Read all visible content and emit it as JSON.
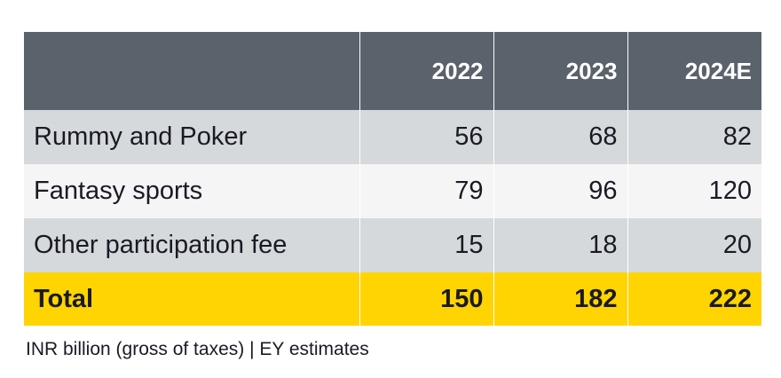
{
  "chart_data": {
    "type": "table",
    "columns": [
      "",
      "2022",
      "2023",
      "2024E"
    ],
    "rows": [
      {
        "label": "Rummy and Poker",
        "values": [
          "56",
          "68",
          "82"
        ]
      },
      {
        "label": "Fantasy sports",
        "values": [
          "79",
          "96",
          "120"
        ]
      },
      {
        "label": "Other participation fee",
        "values": [
          "15",
          "18",
          "20"
        ]
      }
    ],
    "total": {
      "label": "Total",
      "values": [
        "150",
        "182",
        "222"
      ]
    }
  },
  "footnote": "INR billion (gross of taxes) | EY estimates",
  "colors": {
    "header_bg": "#5a636b",
    "row_shade_a": "#d5d9dc",
    "row_shade_b": "#f5f5f6",
    "total_bg": "#ffd400",
    "text": "#1a1a24"
  }
}
